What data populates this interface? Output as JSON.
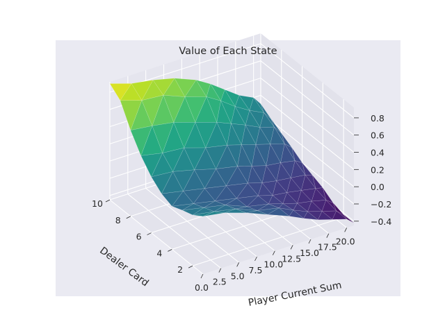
{
  "chart_data": {
    "type": "surface",
    "title": "Value of Each State",
    "xlabel": "Dealer Card",
    "ylabel": "Player Current Sum",
    "zlabel": "",
    "x_ticks": [
      "2",
      "4",
      "6",
      "8",
      "10"
    ],
    "y_ticks": [
      "0.0",
      "2.5",
      "5.0",
      "7.5",
      "10.0",
      "12.5",
      "15.0",
      "17.5",
      "20.0"
    ],
    "z_ticks": [
      "−0.4",
      "−0.2",
      "0.0",
      "0.2",
      "0.4",
      "0.6",
      "0.8"
    ],
    "xlim": [
      1,
      10
    ],
    "ylim": [
      0,
      21
    ],
    "zlim": [
      -0.45,
      0.92
    ],
    "colormap": "viridis",
    "grid": true,
    "x": [
      1,
      2,
      3,
      4,
      5,
      6,
      7,
      8,
      9,
      10
    ],
    "y": [
      0,
      3,
      6,
      9,
      12,
      14,
      16,
      18,
      20,
      21
    ],
    "z": [
      [
        0.22,
        0.14,
        0.1,
        0.05,
        0.1,
        0.2,
        0.35,
        0.55,
        0.8,
        0.9
      ],
      [
        0.18,
        0.1,
        0.05,
        0.0,
        0.05,
        0.18,
        0.3,
        0.52,
        0.72,
        0.82
      ],
      [
        0.1,
        0.05,
        0.0,
        -0.05,
        0.0,
        0.12,
        0.28,
        0.48,
        0.7,
        0.78
      ],
      [
        0.0,
        -0.05,
        -0.1,
        -0.1,
        -0.05,
        0.05,
        0.2,
        0.4,
        0.6,
        0.72
      ],
      [
        -0.1,
        -0.1,
        -0.15,
        -0.15,
        -0.1,
        0.0,
        0.15,
        0.32,
        0.52,
        0.62
      ],
      [
        -0.18,
        -0.18,
        -0.2,
        -0.2,
        -0.15,
        -0.05,
        0.1,
        0.25,
        0.42,
        0.52
      ],
      [
        -0.25,
        -0.25,
        -0.25,
        -0.22,
        -0.18,
        -0.1,
        0.05,
        0.18,
        0.3,
        0.4
      ],
      [
        -0.3,
        -0.3,
        -0.28,
        -0.25,
        -0.2,
        -0.12,
        0.0,
        0.1,
        0.2,
        0.28
      ],
      [
        -0.35,
        -0.35,
        -0.32,
        -0.28,
        -0.22,
        -0.15,
        -0.05,
        0.05,
        0.12,
        0.2
      ],
      [
        -0.42,
        -0.42,
        -0.38,
        -0.3,
        -0.25,
        -0.2,
        -0.12,
        -0.05,
        0.02,
        0.1
      ]
    ]
  }
}
